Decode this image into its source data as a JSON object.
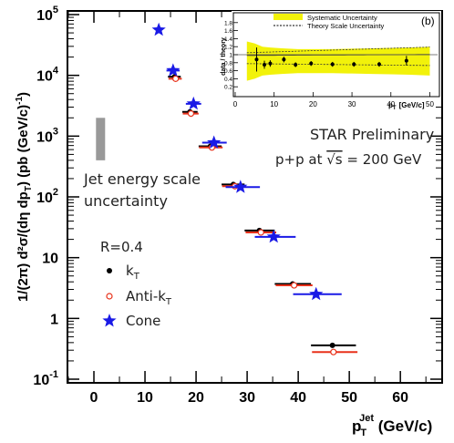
{
  "chart_data": {
    "type": "scatter",
    "yscale": "log",
    "xlim": [
      -5,
      68
    ],
    "ylim": [
      0.1,
      100000
    ],
    "xticks": [
      "0",
      "10",
      "20",
      "30",
      "40",
      "50",
      "60"
    ],
    "yticks": [
      {
        "base": "10",
        "exp": "5",
        "value": 100000
      },
      {
        "base": "10",
        "exp": "4",
        "value": 10000
      },
      {
        "base": "10",
        "exp": "3",
        "value": 1000
      },
      {
        "base": "10",
        "exp": "2",
        "value": 100
      },
      {
        "base": "10",
        "exp": "",
        "value": 10
      },
      {
        "base": "1",
        "exp": "",
        "value": 1
      },
      {
        "base": "10",
        "exp": "-1",
        "value": 0.1
      }
    ],
    "xlabel": {
      "main": "p",
      "sub": "T",
      "sup": "Jet",
      "unit": " (GeV/c)"
    },
    "ylabel": "1/(2π) d²σ/(dη dp_T) (pb (GeV/c)⁻¹)",
    "series": [
      {
        "name": "k_T",
        "marker": "dot",
        "color": "#000000",
        "points": [
          {
            "x": 15.8,
            "y": 9500,
            "xerr": [
              14.5,
              17.0
            ]
          },
          {
            "x": 18.8,
            "y": 2500,
            "xerr": [
              17.3,
              20.3
            ]
          },
          {
            "x": 22.8,
            "y": 680,
            "xerr": [
              20.5,
              25.0
            ]
          },
          {
            "x": 27.3,
            "y": 160,
            "xerr": [
              25.0,
              29.5
            ]
          },
          {
            "x": 32.4,
            "y": 28,
            "xerr": [
              29.5,
              35.4
            ]
          },
          {
            "x": 38.9,
            "y": 3.7,
            "xerr": [
              35.4,
              42.5
            ]
          },
          {
            "x": 46.7,
            "y": 0.36,
            "xerr": [
              42.5,
              51.3
            ]
          }
        ]
      },
      {
        "name": "Anti-k_T",
        "marker": "circle",
        "color": "#e8311a",
        "points": [
          {
            "x": 16.0,
            "y": 8800,
            "xerr": [
              14.6,
              17.2
            ]
          },
          {
            "x": 19.0,
            "y": 2350,
            "xerr": [
              17.4,
              20.5
            ]
          },
          {
            "x": 23.1,
            "y": 650,
            "xerr": [
              20.6,
              25.2
            ]
          },
          {
            "x": 27.6,
            "y": 150,
            "xerr": [
              25.1,
              29.8
            ]
          },
          {
            "x": 32.7,
            "y": 26,
            "xerr": [
              29.7,
              35.7
            ]
          },
          {
            "x": 39.2,
            "y": 3.5,
            "xerr": [
              35.6,
              42.8
            ]
          },
          {
            "x": 46.9,
            "y": 0.28,
            "xerr": [
              42.7,
              51.6
            ]
          }
        ]
      },
      {
        "name": "Cone",
        "marker": "star",
        "color": "#1a1ae6",
        "points": [
          {
            "x": 12.7,
            "y": 56000,
            "xerr": null
          },
          {
            "x": 15.5,
            "y": 12000,
            "xerr": [
              14.2,
              16.8
            ]
          },
          {
            "x": 19.5,
            "y": 3400,
            "xerr": [
              18.0,
              21.0
            ]
          },
          {
            "x": 23.5,
            "y": 780,
            "xerr": [
              21.2,
              26.0
            ]
          },
          {
            "x": 28.7,
            "y": 145,
            "xerr": [
              25.8,
              32.5
            ]
          },
          {
            "x": 35.2,
            "y": 22,
            "xerr": [
              31.5,
              39.5
            ]
          },
          {
            "x": 43.5,
            "y": 2.5,
            "xerr": [
              39.0,
              48.5
            ]
          }
        ]
      }
    ],
    "jes_band": {
      "x": 1.3,
      "ylo": 400,
      "yhi": 2000,
      "color": "#999999"
    },
    "annotations": {
      "jes_line1": "Jet energy scale",
      "jes_line2": "uncertainty",
      "radius": "R=0.4",
      "star_prelim": "STAR Preliminary",
      "collision_prefix": "p+p at ",
      "sqrt_s": "√s",
      "collision_suffix": " = 200 GeV"
    },
    "legend": {
      "placement": "left",
      "entries": [
        {
          "label": "k",
          "sub": "T",
          "series": 0
        },
        {
          "label": "Anti-k",
          "sub": "T",
          "series": 1
        },
        {
          "label": "Cone",
          "sub": "",
          "series": 2
        }
      ]
    },
    "inset": {
      "label": "(b)",
      "ylabel": "data / theory",
      "xlabel": "p",
      "xlabel_sub": "T",
      "xlabel_unit": "[GeV/c]",
      "xlim": [
        0,
        52
      ],
      "ylim": [
        0,
        2.0
      ],
      "xticks": [
        "0",
        "10",
        "20",
        "30",
        "40",
        "50"
      ],
      "yticks": [
        "0.2",
        "0.4",
        "0.6",
        "0.8",
        "1",
        "1.2",
        "1.4",
        "1.6",
        "1.8"
      ],
      "legend": [
        "Systematic Uncertainty",
        "Theory Scale Uncertainty"
      ],
      "band_color": "#f2f20a",
      "points": [
        {
          "x": 5.5,
          "y": 0.88,
          "err": 0.3
        },
        {
          "x": 7.5,
          "y": 0.75,
          "err": 0.1
        },
        {
          "x": 9.0,
          "y": 0.78,
          "err": 0.08
        },
        {
          "x": 12.5,
          "y": 0.88,
          "err": 0.07
        },
        {
          "x": 15.5,
          "y": 0.75,
          "err": 0.06
        },
        {
          "x": 19.5,
          "y": 0.78,
          "err": 0.06
        },
        {
          "x": 25.0,
          "y": 0.76,
          "err": 0.06
        },
        {
          "x": 30.5,
          "y": 0.76,
          "err": 0.06
        },
        {
          "x": 37.0,
          "y": 0.76,
          "err": 0.06
        },
        {
          "x": 44.0,
          "y": 0.85,
          "err": 0.12
        }
      ]
    }
  }
}
